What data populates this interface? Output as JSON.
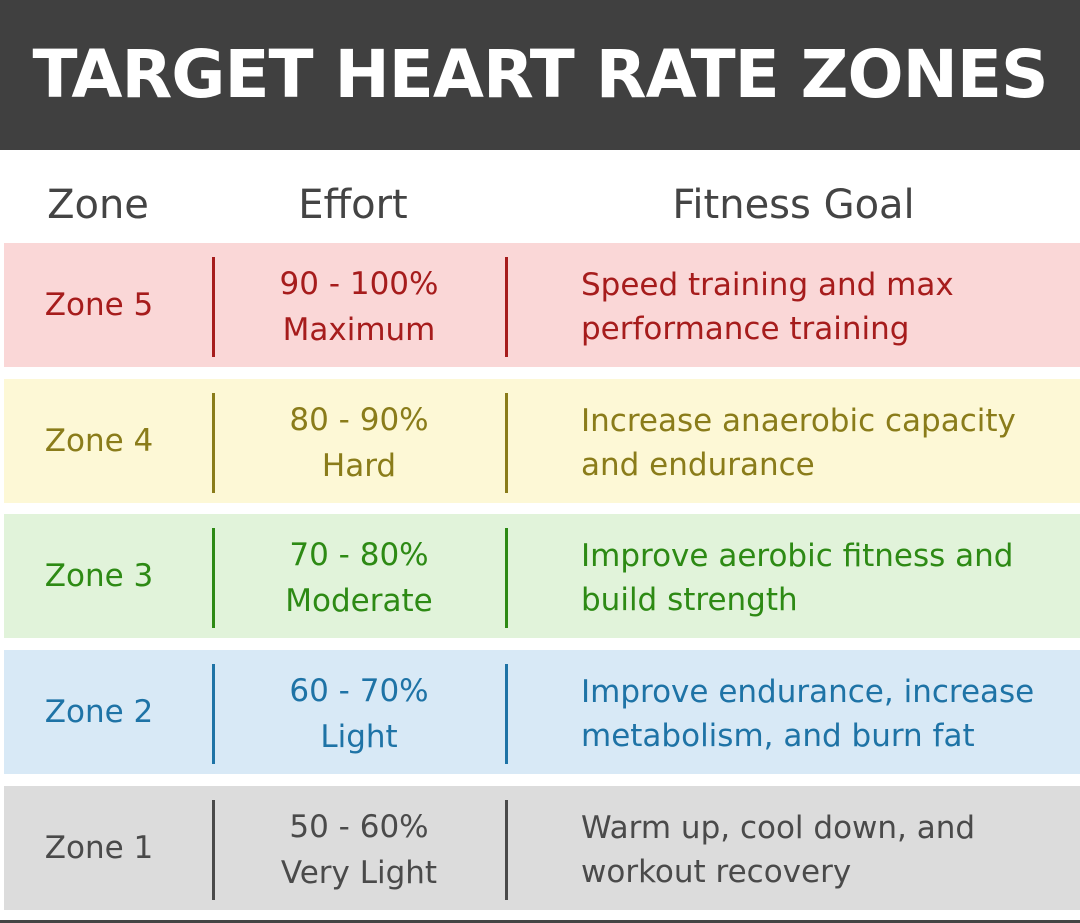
{
  "title": "TARGET HEART RATE ZONES",
  "headers": {
    "zone": "Zone",
    "effort": "Effort",
    "goal": "Fitness Goal"
  },
  "rows": [
    {
      "zone": "Zone 5",
      "range": "90 - 100%",
      "level": "Maximum",
      "goal_line1": "Speed training and max",
      "goal_line2": "performance training",
      "bg": "#fad7d7",
      "color": "#a61c1c"
    },
    {
      "zone": "Zone 4",
      "range": "80 - 90%",
      "level": "Hard",
      "goal_line1": "Increase anaerobic capacity",
      "goal_line2": "and endurance",
      "bg": "#fdf8d6",
      "color": "#8a7c1a"
    },
    {
      "zone": "Zone 3",
      "range": "70 - 80%",
      "level": "Moderate",
      "goal_line1": "Improve aerobic fitness and",
      "goal_line2": "build strength",
      "bg": "#e1f3da",
      "color": "#2d8a14"
    },
    {
      "zone": "Zone 2",
      "range": "60 - 70%",
      "level": "Light",
      "goal_line1": "Improve endurance, increase",
      "goal_line2": "metabolism, and burn fat",
      "bg": "#d8e9f6",
      "color": "#1e73a6"
    },
    {
      "zone": "Zone 1",
      "range": "50 - 60%",
      "level": "Very Light",
      "goal_line1": "Warm up, cool down, and",
      "goal_line2": "workout recovery",
      "bg": "#dcdcdc",
      "color": "#4a4a4a"
    }
  ]
}
